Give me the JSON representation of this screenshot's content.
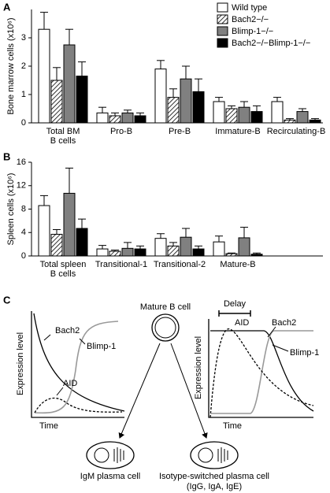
{
  "chart_data": [
    {
      "type": "bar",
      "label": "A",
      "y_label": "Bone marrow cells (x10⁶)",
      "categories": [
        "Total BM\nB cells",
        "Pro-B",
        "Pre-B",
        "Immature-B",
        "Recirculating-B"
      ],
      "series": [
        {
          "name": "Wild type",
          "color": "#ffffff",
          "values": [
            3.3,
            0.35,
            1.9,
            0.75,
            0.75
          ],
          "errors": [
            0.6,
            0.2,
            0.3,
            0.15,
            0.15
          ]
        },
        {
          "name": "Bach2−/−",
          "color": "#ffffff",
          "hatch": true,
          "values": [
            1.5,
            0.25,
            0.9,
            0.5,
            0.1
          ],
          "errors": [
            0.45,
            0.1,
            0.3,
            0.1,
            0.05
          ]
        },
        {
          "name": "Blimp-1−/−",
          "color": "#808080",
          "values": [
            2.75,
            0.35,
            1.55,
            0.55,
            0.4
          ],
          "errors": [
            0.55,
            0.1,
            0.45,
            0.2,
            0.1
          ]
        },
        {
          "name": "Bach2−/−Blimp-1−/−",
          "color": "#000000",
          "values": [
            1.65,
            0.25,
            1.1,
            0.4,
            0.1
          ],
          "errors": [
            0.5,
            0.1,
            0.45,
            0.2,
            0.05
          ]
        }
      ],
      "ylim": [
        0,
        4
      ],
      "yticks": [
        0,
        1,
        2,
        3
      ],
      "legend": "top-right"
    },
    {
      "type": "bar",
      "label": "B",
      "y_label": "Spleen cells (x10⁶)",
      "categories": [
        "Total spleen\nB cells",
        "Transitional-1",
        "Transitional-2",
        "Mature-B"
      ],
      "series": [
        {
          "name": "Wild type",
          "color": "#ffffff",
          "values": [
            8.6,
            1.2,
            3.0,
            2.4
          ],
          "errors": [
            1.7,
            0.6,
            0.8,
            1.0
          ]
        },
        {
          "name": "Bach2−/−",
          "color": "#ffffff",
          "hatch": true,
          "values": [
            3.7,
            0.8,
            1.7,
            0.4
          ],
          "errors": [
            0.8,
            0.2,
            0.6,
            0.1
          ]
        },
        {
          "name": "Blimp-1−/−",
          "color": "#808080",
          "values": [
            10.7,
            1.3,
            3.2,
            3.1
          ],
          "errors": [
            4.3,
            1.0,
            1.5,
            1.8
          ]
        },
        {
          "name": "Bach2−/−Blimp-1−/−",
          "color": "#000000",
          "values": [
            4.7,
            1.2,
            1.2,
            0.3
          ],
          "errors": [
            1.6,
            0.5,
            0.5,
            0.2
          ]
        }
      ],
      "ylim": [
        0,
        16
      ],
      "yticks": [
        0,
        4,
        8,
        12,
        16
      ]
    }
  ],
  "diagram": {
    "label": "C",
    "mature": "Mature B cell",
    "delay": "Delay",
    "left_graph": {
      "y_label": "Expression level",
      "x_label": "Time",
      "bach2": "Bach2",
      "blimp1": "Blimp-1",
      "aid": "AID"
    },
    "right_graph": {
      "y_label": "Expression level",
      "x_label": "Time",
      "bach2": "Bach2",
      "blimp1": "Blimp-1",
      "aid": "AID"
    },
    "igm": "IgM plasma cell",
    "switched": "Isotype-switched plasma cell",
    "switched_sub": "(IgG, IgA, IgE)"
  }
}
